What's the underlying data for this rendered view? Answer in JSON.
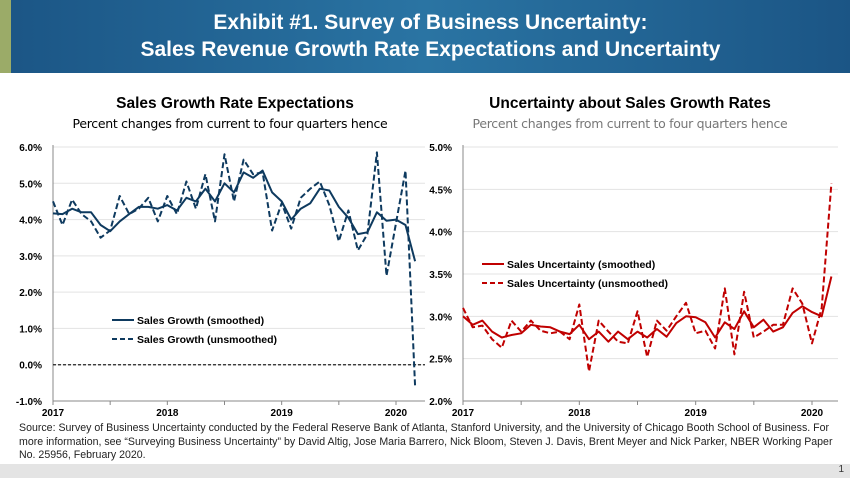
{
  "header": {
    "title_line1": "Exhibit #1. Survey of Business Uncertainty:",
    "title_line2": "Sales Revenue Growth Rate Expectations and Uncertainty"
  },
  "colors": {
    "banner": "#1b5585",
    "stripe": "#9bab68",
    "growth": "#0e3a5f",
    "uncertainty": "#c00000"
  },
  "chart_data": [
    {
      "type": "line",
      "title": "Sales Growth Rate Expectations",
      "subtitle": "Percent changes from current to four quarters hence",
      "x_range": [
        "2017-01",
        "2020-03"
      ],
      "x_ticks": [
        "2017",
        "2018",
        "2019",
        "2020"
      ],
      "y_ticks": [
        "-1.0%",
        "0.0%",
        "1.0%",
        "2.0%",
        "3.0%",
        "4.0%",
        "5.0%",
        "6.0%"
      ],
      "ylim": [
        -1,
        6
      ],
      "grid": true,
      "legend": "center-left",
      "reference_line": 0,
      "frequency": "monthly",
      "series": [
        {
          "name": "Sales Growth (smoothed)",
          "style": "solid",
          "values": [
            4.17,
            4.15,
            4.3,
            4.2,
            4.2,
            3.85,
            3.68,
            3.95,
            4.15,
            4.35,
            4.35,
            4.3,
            4.4,
            4.25,
            4.6,
            4.5,
            4.85,
            4.5,
            5.0,
            4.75,
            5.3,
            5.15,
            5.35,
            4.75,
            4.5,
            4.0,
            4.3,
            4.45,
            4.85,
            4.8,
            4.35,
            4.05,
            3.6,
            3.65,
            4.2,
            3.97,
            4.0,
            3.85,
            2.85
          ]
        },
        {
          "name": "Sales Growth (unsmoothed)",
          "style": "dashed",
          "values": [
            4.5,
            3.85,
            4.55,
            4.15,
            3.95,
            3.5,
            3.7,
            4.65,
            4.15,
            4.3,
            4.6,
            3.95,
            4.65,
            4.15,
            5.05,
            4.3,
            5.25,
            3.95,
            5.8,
            4.5,
            5.65,
            5.25,
            5.3,
            3.7,
            4.45,
            3.75,
            4.6,
            4.85,
            5.05,
            4.4,
            3.4,
            4.25,
            3.15,
            3.6,
            5.85,
            2.45,
            3.9,
            5.35,
            -0.6
          ]
        }
      ]
    },
    {
      "type": "line",
      "title": "Uncertainty about Sales Growth Rates",
      "subtitle": "Percent changes from current to four quarters hence",
      "x_range": [
        "2017-01",
        "2020-03"
      ],
      "x_ticks": [
        "2017",
        "2018",
        "2019",
        "2020"
      ],
      "y_ticks": [
        "2.0%",
        "2.5%",
        "3.0%",
        "3.5%",
        "4.0%",
        "4.5%",
        "5.0%"
      ],
      "ylim": [
        2,
        5
      ],
      "grid": true,
      "legend": "center-left",
      "frequency": "monthly",
      "series": [
        {
          "name": "Sales Uncertainty (smoothed)",
          "style": "solid",
          "values": [
            3.0,
            2.9,
            2.95,
            2.82,
            2.75,
            2.78,
            2.8,
            2.9,
            2.88,
            2.87,
            2.82,
            2.79,
            2.9,
            2.73,
            2.82,
            2.7,
            2.82,
            2.73,
            2.82,
            2.75,
            2.85,
            2.76,
            2.92,
            3.0,
            2.99,
            2.93,
            2.75,
            2.93,
            2.85,
            3.06,
            2.87,
            2.96,
            2.82,
            2.87,
            3.04,
            3.12,
            3.05,
            3.0,
            3.47
          ]
        },
        {
          "name": "Sales Uncertainty (unsmoothed)",
          "style": "dashed",
          "values": [
            3.1,
            2.87,
            2.89,
            2.73,
            2.63,
            2.95,
            2.82,
            2.95,
            2.83,
            2.8,
            2.82,
            2.73,
            3.14,
            2.35,
            2.95,
            2.82,
            2.7,
            2.68,
            3.06,
            2.52,
            2.95,
            2.83,
            3.0,
            3.16,
            2.8,
            2.83,
            2.62,
            3.33,
            2.55,
            3.29,
            2.75,
            2.82,
            2.9,
            2.9,
            3.33,
            3.15,
            2.68,
            3.1,
            4.57
          ]
        }
      ]
    }
  ],
  "source": "Source: Survey of Business Uncertainty conducted by the Federal Reserve Bank of Atlanta, Stanford University, and the University of Chicago Booth School of Business. For more information, see “Surveying Business Uncertainty” by David Altig, Jose Maria Barrero, Nick Bloom, Steven J. Davis, Brent Meyer and Nick Parker, NBER Working Paper No. 25956, February 2020.",
  "page_number": "1"
}
